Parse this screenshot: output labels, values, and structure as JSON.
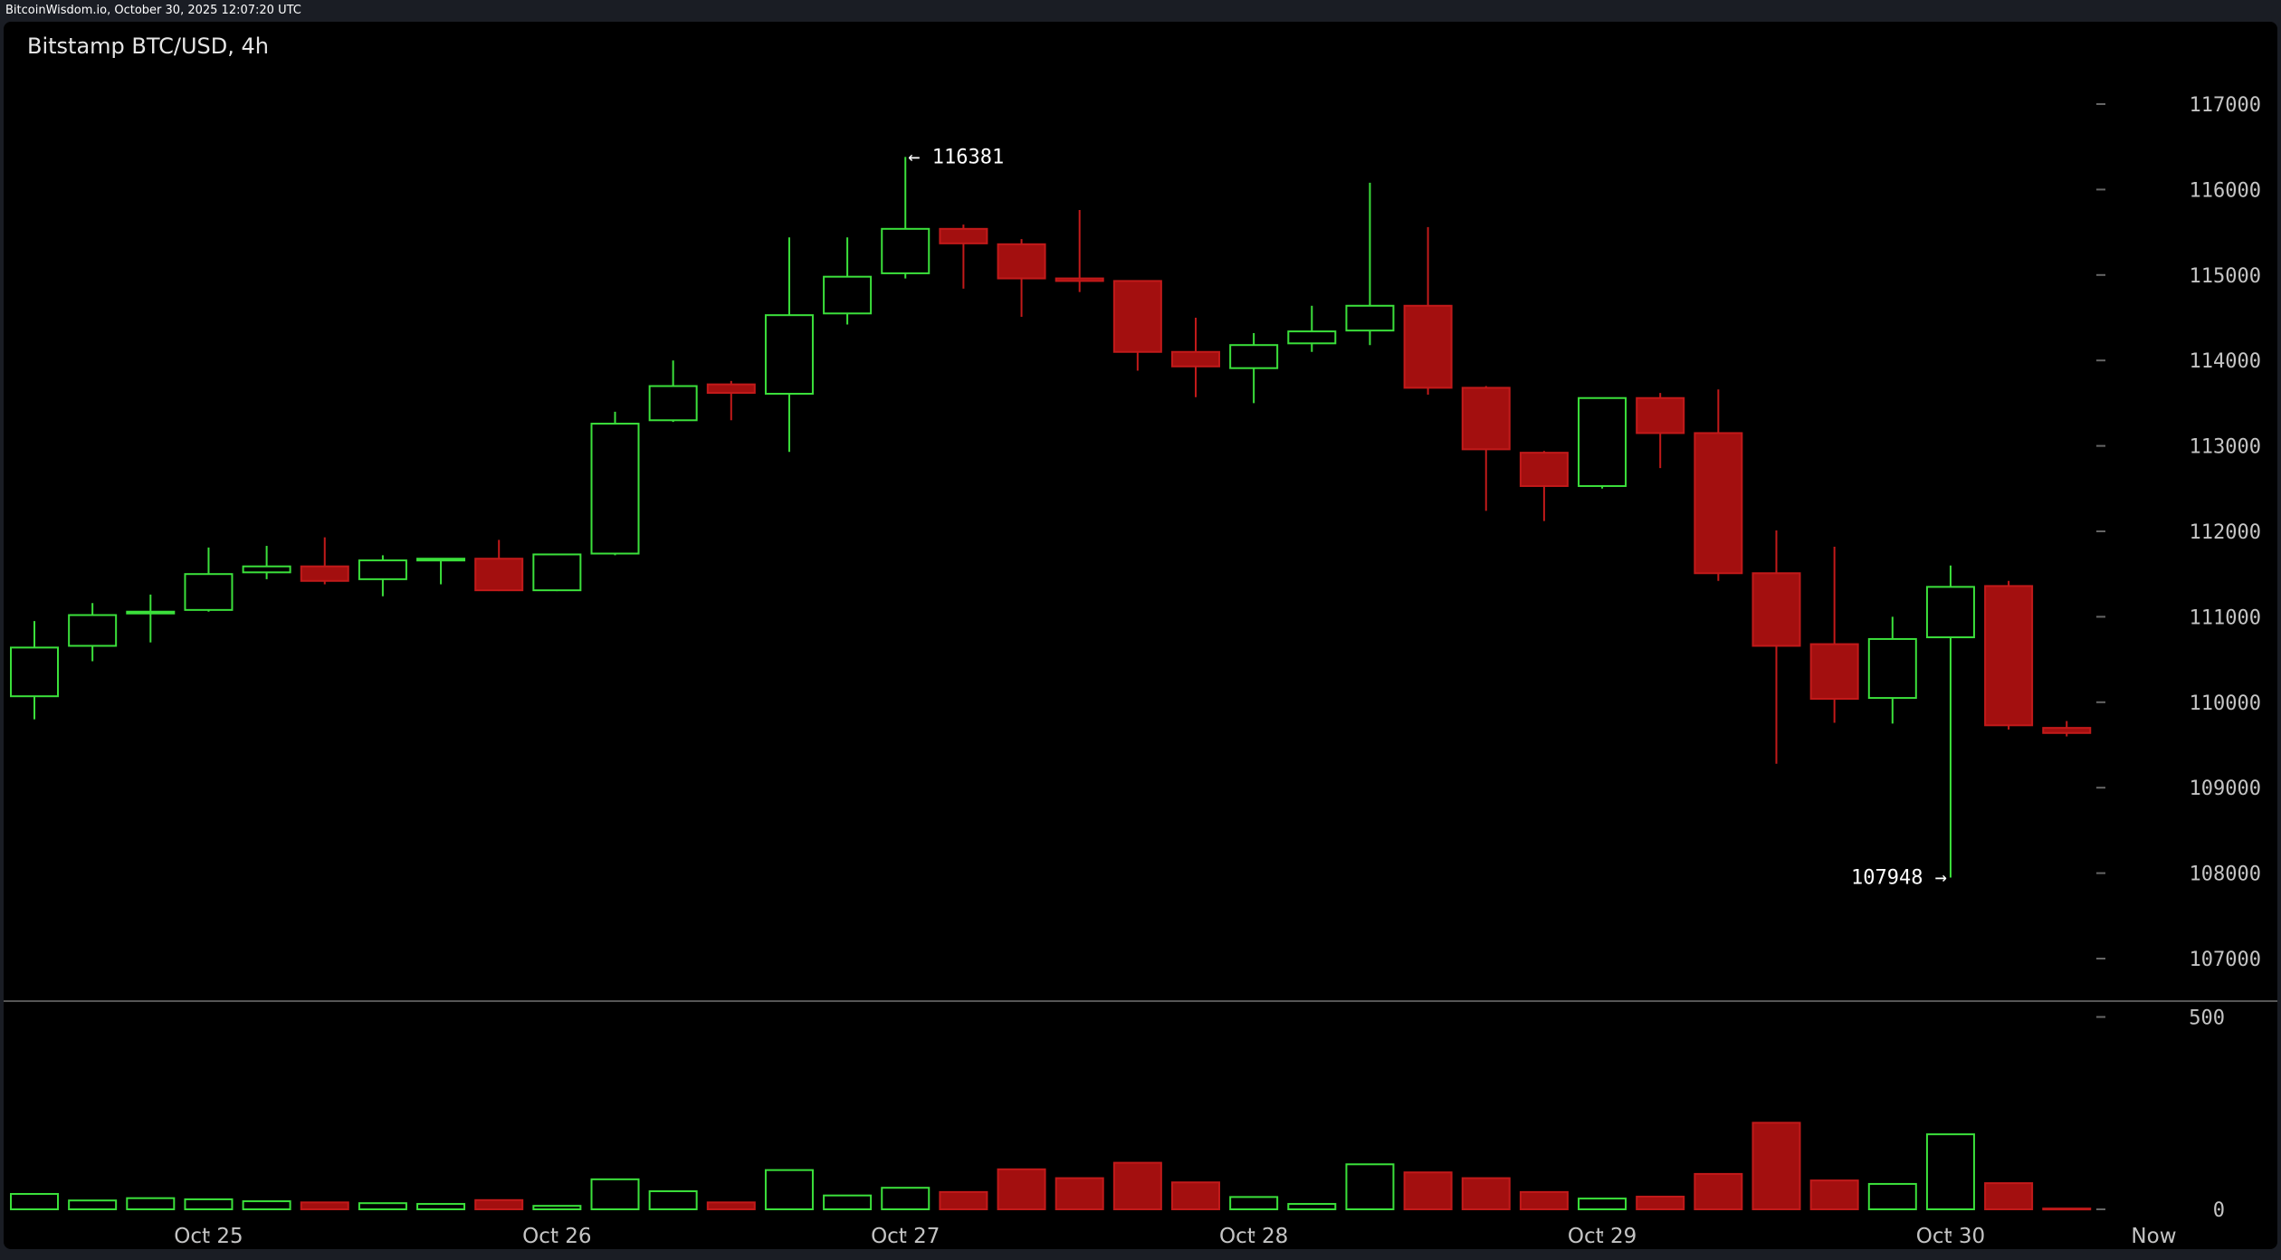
{
  "header": {
    "site_caption": "BitcoinWisdom.io, October 30, 2025 12:07:20 UTC"
  },
  "colors": {
    "background": "#000000",
    "up": "#3be03b",
    "down": "#a30f0f",
    "down_border": "#c21a1a",
    "axis_text": "#c4c4c4",
    "separator": "#555555"
  },
  "chart_data": {
    "type": "candlestick",
    "title": "Bitstamp BTC/USD, 4h",
    "price_axis": {
      "ylim": [
        106500,
        117800
      ],
      "ticks": [
        "117000",
        "116000",
        "115000",
        "114000",
        "113000",
        "112000",
        "111000",
        "110000",
        "109000",
        "108000",
        "107000"
      ]
    },
    "volume_axis": {
      "ylim": [
        0,
        720
      ],
      "ticks": [
        "500",
        "0"
      ]
    },
    "x_labels": [
      {
        "label": "Oct 25",
        "index": 3.0
      },
      {
        "label": "Oct 26",
        "index": 9.0
      },
      {
        "label": "Oct 27",
        "index": 15.0
      },
      {
        "label": "Oct 28",
        "index": 21.0
      },
      {
        "label": "Oct 29",
        "index": 27.0
      },
      {
        "label": "Oct 30",
        "index": 33.0
      },
      {
        "label": "Now",
        "index": 36.5
      }
    ],
    "annotations": [
      {
        "text": "← 116381",
        "index": 15,
        "value": 116381,
        "side": "right"
      },
      {
        "text": "107948 →",
        "index": 33,
        "value": 107948,
        "side": "left"
      }
    ],
    "candles": [
      {
        "o": 110070,
        "h": 110950,
        "l": 109800,
        "c": 110640,
        "v": 40
      },
      {
        "o": 110660,
        "h": 111160,
        "l": 110480,
        "c": 111020,
        "v": 23
      },
      {
        "o": 111040,
        "h": 111260,
        "l": 110700,
        "c": 111060,
        "v": 29
      },
      {
        "o": 111080,
        "h": 111810,
        "l": 111060,
        "c": 111500,
        "v": 26
      },
      {
        "o": 111520,
        "h": 111830,
        "l": 111440,
        "c": 111590,
        "v": 21
      },
      {
        "o": 111590,
        "h": 111930,
        "l": 111380,
        "c": 111420,
        "v": 18
      },
      {
        "o": 111440,
        "h": 111720,
        "l": 111240,
        "c": 111660,
        "v": 16
      },
      {
        "o": 111660,
        "h": 111680,
        "l": 111380,
        "c": 111680,
        "v": 14
      },
      {
        "o": 111680,
        "h": 111900,
        "l": 111300,
        "c": 111310,
        "v": 24
      },
      {
        "o": 111310,
        "h": 111740,
        "l": 111300,
        "c": 111730,
        "v": 9
      },
      {
        "o": 111740,
        "h": 113400,
        "l": 111720,
        "c": 113260,
        "v": 78
      },
      {
        "o": 113300,
        "h": 114000,
        "l": 113280,
        "c": 113700,
        "v": 47
      },
      {
        "o": 113720,
        "h": 113760,
        "l": 113300,
        "c": 113620,
        "v": 18
      },
      {
        "o": 113610,
        "h": 115440,
        "l": 112930,
        "c": 114530,
        "v": 102
      },
      {
        "o": 114550,
        "h": 115440,
        "l": 114420,
        "c": 114980,
        "v": 36
      },
      {
        "o": 115020,
        "h": 116381,
        "l": 114960,
        "c": 115540,
        "v": 56
      },
      {
        "o": 115540,
        "h": 115590,
        "l": 114840,
        "c": 115370,
        "v": 45
      },
      {
        "o": 115360,
        "h": 115420,
        "l": 114510,
        "c": 114960,
        "v": 104
      },
      {
        "o": 114960,
        "h": 115760,
        "l": 114800,
        "c": 114930,
        "v": 81
      },
      {
        "o": 114930,
        "h": 114940,
        "l": 113880,
        "c": 114100,
        "v": 121
      },
      {
        "o": 114100,
        "h": 114500,
        "l": 113570,
        "c": 113930,
        "v": 70
      },
      {
        "o": 113910,
        "h": 114320,
        "l": 113500,
        "c": 114180,
        "v": 32
      },
      {
        "o": 114200,
        "h": 114640,
        "l": 114100,
        "c": 114340,
        "v": 14
      },
      {
        "o": 114350,
        "h": 116080,
        "l": 114180,
        "c": 114640,
        "v": 117
      },
      {
        "o": 114640,
        "h": 115560,
        "l": 113600,
        "c": 113680,
        "v": 96
      },
      {
        "o": 113680,
        "h": 113700,
        "l": 112240,
        "c": 112960,
        "v": 81
      },
      {
        "o": 112920,
        "h": 112940,
        "l": 112120,
        "c": 112530,
        "v": 45
      },
      {
        "o": 112530,
        "h": 113560,
        "l": 112500,
        "c": 113560,
        "v": 28
      },
      {
        "o": 113560,
        "h": 113620,
        "l": 112740,
        "c": 113150,
        "v": 33
      },
      {
        "o": 113150,
        "h": 113660,
        "l": 111420,
        "c": 111510,
        "v": 92
      },
      {
        "o": 111510,
        "h": 112010,
        "l": 109280,
        "c": 110660,
        "v": 225
      },
      {
        "o": 110680,
        "h": 111820,
        "l": 109760,
        "c": 110040,
        "v": 75
      },
      {
        "o": 110050,
        "h": 111000,
        "l": 109750,
        "c": 110740,
        "v": 66
      },
      {
        "o": 110760,
        "h": 111600,
        "l": 107948,
        "c": 111350,
        "v": 195
      },
      {
        "o": 111360,
        "h": 111420,
        "l": 109680,
        "c": 109730,
        "v": 68
      },
      {
        "o": 109700,
        "h": 109780,
        "l": 109600,
        "c": 109640,
        "v": 2
      }
    ]
  }
}
